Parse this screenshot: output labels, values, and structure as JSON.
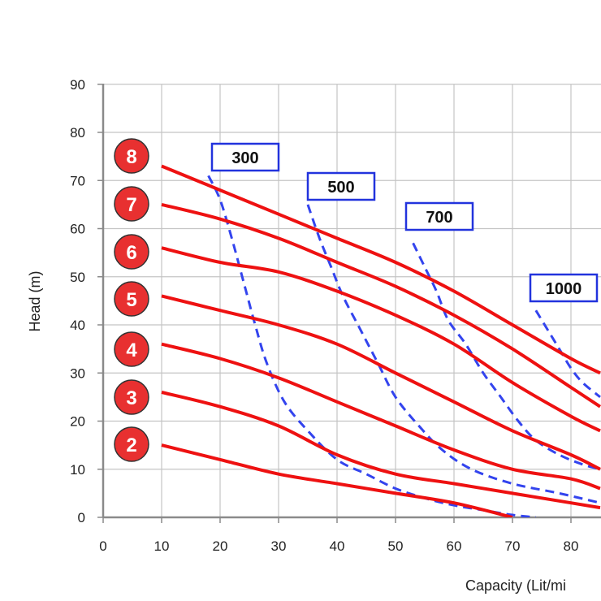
{
  "chart_data": {
    "type": "line",
    "xlabel": "Capacity (Lit/mi",
    "ylabel": "Head (m)",
    "xlim": [
      0,
      85
    ],
    "ylim": [
      0,
      90
    ],
    "x_ticks": [
      0,
      10,
      20,
      30,
      40,
      50,
      60,
      70,
      80
    ],
    "y_ticks": [
      0,
      10,
      20,
      30,
      40,
      50,
      60,
      70,
      80,
      90
    ],
    "grid": true,
    "colors": {
      "performance": "#ee1111",
      "air": "#3344ee",
      "badge": "#e83030",
      "box_border": "#2233dd"
    },
    "series": [
      {
        "name": "8",
        "style": "solid",
        "points": [
          [
            10,
            73
          ],
          [
            20,
            68
          ],
          [
            30,
            63
          ],
          [
            40,
            58
          ],
          [
            50,
            53
          ],
          [
            60,
            47
          ],
          [
            70,
            40
          ],
          [
            80,
            33
          ],
          [
            85,
            30
          ]
        ]
      },
      {
        "name": "7",
        "style": "solid",
        "points": [
          [
            10,
            65
          ],
          [
            20,
            62
          ],
          [
            30,
            58
          ],
          [
            40,
            53
          ],
          [
            50,
            48
          ],
          [
            60,
            42
          ],
          [
            70,
            35
          ],
          [
            80,
            27
          ],
          [
            85,
            23
          ]
        ]
      },
      {
        "name": "6",
        "style": "solid",
        "points": [
          [
            10,
            56
          ],
          [
            20,
            53
          ],
          [
            30,
            51
          ],
          [
            40,
            47
          ],
          [
            50,
            42
          ],
          [
            60,
            36
          ],
          [
            70,
            28
          ],
          [
            80,
            21
          ],
          [
            85,
            18
          ]
        ]
      },
      {
        "name": "5",
        "style": "solid",
        "points": [
          [
            10,
            46
          ],
          [
            20,
            43
          ],
          [
            30,
            40
          ],
          [
            40,
            36
          ],
          [
            50,
            30
          ],
          [
            60,
            24
          ],
          [
            70,
            18
          ],
          [
            80,
            13
          ],
          [
            85,
            10
          ]
        ]
      },
      {
        "name": "4",
        "style": "solid",
        "points": [
          [
            10,
            36
          ],
          [
            20,
            33
          ],
          [
            30,
            29
          ],
          [
            40,
            24
          ],
          [
            50,
            19
          ],
          [
            60,
            14
          ],
          [
            70,
            10
          ],
          [
            80,
            8
          ],
          [
            85,
            6
          ]
        ]
      },
      {
        "name": "3",
        "style": "solid",
        "points": [
          [
            10,
            26
          ],
          [
            20,
            23
          ],
          [
            30,
            19
          ],
          [
            40,
            13
          ],
          [
            50,
            9
          ],
          [
            60,
            7
          ],
          [
            70,
            5
          ],
          [
            80,
            3
          ],
          [
            85,
            2
          ]
        ]
      },
      {
        "name": "2",
        "style": "solid",
        "points": [
          [
            10,
            15
          ],
          [
            20,
            12
          ],
          [
            30,
            9
          ],
          [
            40,
            7
          ],
          [
            50,
            5
          ],
          [
            60,
            3
          ],
          [
            70,
            0
          ]
        ]
      },
      {
        "name": "300",
        "style": "dashed",
        "points": [
          [
            18,
            71
          ],
          [
            20,
            66
          ],
          [
            22,
            58
          ],
          [
            24,
            49
          ],
          [
            26,
            40
          ],
          [
            28,
            32
          ],
          [
            31,
            24
          ],
          [
            35,
            18
          ],
          [
            40,
            12
          ],
          [
            45,
            9
          ],
          [
            50,
            6
          ],
          [
            55,
            4
          ],
          [
            60,
            2.5
          ],
          [
            65,
            1.5
          ],
          [
            70,
            0.5
          ],
          [
            74,
            0
          ]
        ]
      },
      {
        "name": "500",
        "style": "dashed",
        "points": [
          [
            35,
            65
          ],
          [
            37,
            58
          ],
          [
            39,
            52
          ],
          [
            41,
            46
          ],
          [
            44,
            39
          ],
          [
            47,
            32
          ],
          [
            50,
            25
          ],
          [
            54,
            19
          ],
          [
            58,
            14
          ],
          [
            63,
            10
          ],
          [
            70,
            7
          ],
          [
            78,
            5
          ],
          [
            85,
            3
          ]
        ]
      },
      {
        "name": "700",
        "style": "dashed",
        "points": [
          [
            53,
            57
          ],
          [
            55,
            52
          ],
          [
            57,
            47
          ],
          [
            59,
            41
          ],
          [
            62,
            36
          ],
          [
            65,
            30
          ],
          [
            68,
            25
          ],
          [
            71,
            20
          ],
          [
            74,
            16
          ],
          [
            78,
            13
          ],
          [
            82,
            11
          ],
          [
            85,
            10
          ]
        ]
      },
      {
        "name": "1000",
        "style": "dashed",
        "points": [
          [
            74,
            43
          ],
          [
            76,
            39
          ],
          [
            78,
            35
          ],
          [
            80,
            31
          ],
          [
            82,
            28
          ],
          [
            85,
            25
          ]
        ]
      }
    ],
    "badges": [
      "8",
      "7",
      "6",
      "5",
      "4",
      "3",
      "2"
    ],
    "air_labels": [
      "300",
      "500",
      "700",
      "1000"
    ]
  }
}
